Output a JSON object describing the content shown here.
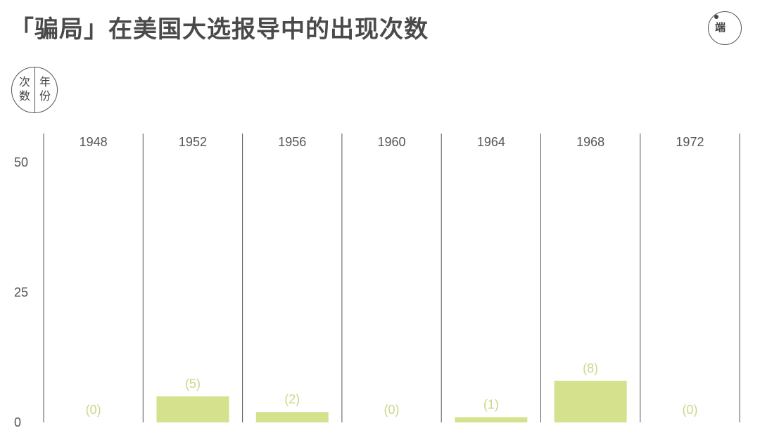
{
  "title": "「骗局」在美国大选报导中的出现次数",
  "logo": {
    "mark": "端"
  },
  "legend": {
    "left": "次数",
    "right": "年份"
  },
  "colors": {
    "bar": "#d5e18d",
    "label": "#c7d98a",
    "axis": "#555555",
    "title": "#4a4a4a"
  },
  "chart_data": {
    "type": "bar",
    "categories": [
      "1948",
      "1952",
      "1956",
      "1960",
      "1964",
      "1968",
      "1972"
    ],
    "values": [
      0,
      5,
      2,
      0,
      1,
      8,
      0
    ],
    "data_labels": [
      "(0)",
      "(5)",
      "(2)",
      "(0)",
      "(1)",
      "(8)",
      "(0)"
    ],
    "yticks": [
      "0",
      "25",
      "50"
    ],
    "ylim": [
      0,
      50
    ],
    "grid": false,
    "legend": "none"
  }
}
